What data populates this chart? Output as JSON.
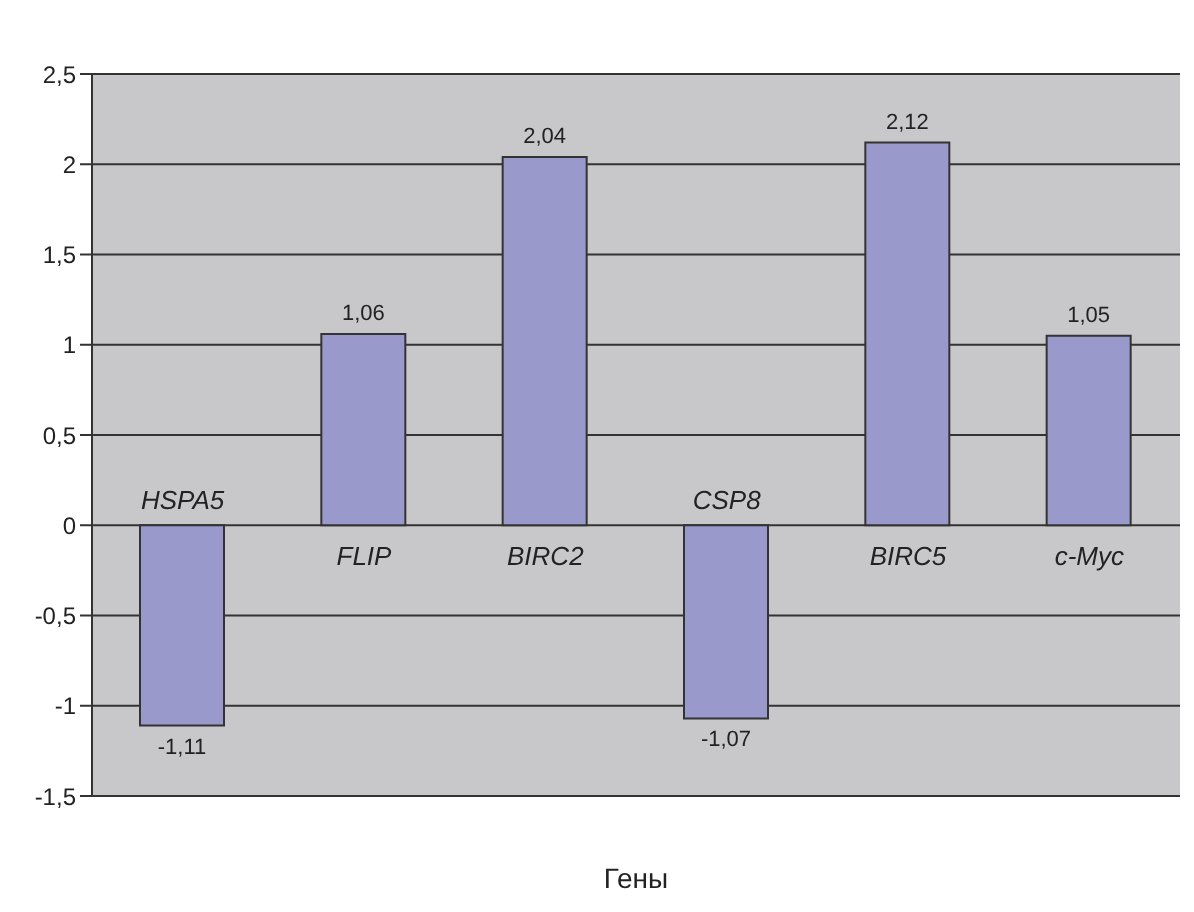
{
  "chart_data": {
    "type": "bar",
    "xlabel": "Гены",
    "categories": [
      "HSPA5",
      "FLIP",
      "BIRC2",
      "CSP8",
      "BIRC5",
      "c-Myc"
    ],
    "values": [
      -1.11,
      1.06,
      2.04,
      -1.07,
      2.12,
      1.05
    ],
    "value_labels": [
      "-1,11",
      "1,06",
      "2,04",
      "-1,07",
      "2,12",
      "1,05"
    ],
    "color": "#9999cc",
    "grid": "y",
    "legend": false,
    "ylim": [
      -1.5,
      2.5
    ],
    "yticks": [
      {
        "value": -1.5,
        "label": "-1,5"
      },
      {
        "value": -1,
        "label": "-1"
      },
      {
        "value": -0.5,
        "label": "-0,5"
      },
      {
        "value": 0,
        "label": "0"
      },
      {
        "value": 0.5,
        "label": "0,5"
      },
      {
        "value": 1,
        "label": "1"
      },
      {
        "value": 1.5,
        "label": "1,5"
      },
      {
        "value": 2,
        "label": "2"
      },
      {
        "value": 2.5,
        "label": "2,5"
      }
    ]
  }
}
